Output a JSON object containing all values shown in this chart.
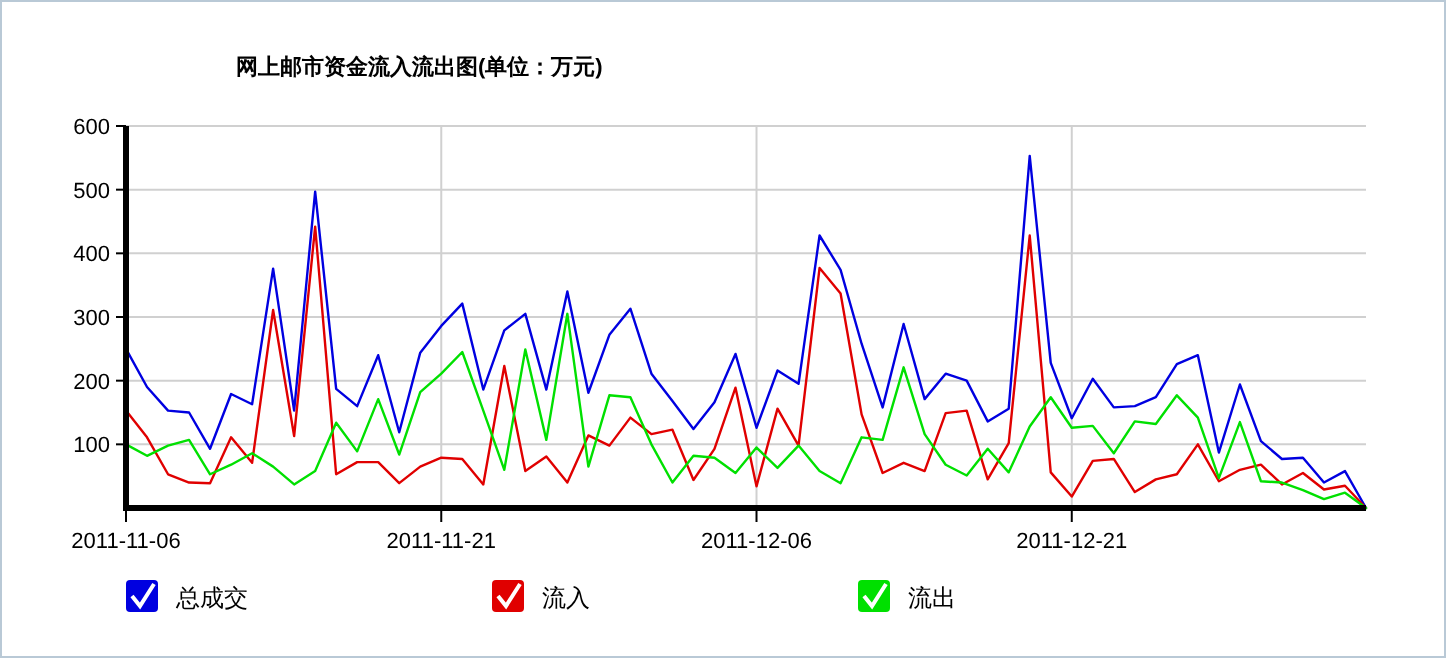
{
  "chart_data": {
    "type": "line",
    "title": "网上邮市资金流入流出图(单位：万元)",
    "x": [
      "2011-11-06",
      "2011-11-07",
      "2011-11-08",
      "2011-11-09",
      "2011-11-10",
      "2011-11-11",
      "2011-11-12",
      "2011-11-13",
      "2011-11-14",
      "2011-11-15",
      "2011-11-16",
      "2011-11-17",
      "2011-11-18",
      "2011-11-19",
      "2011-11-20",
      "2011-11-21",
      "2011-11-22",
      "2011-11-23",
      "2011-11-24",
      "2011-11-25",
      "2011-11-26",
      "2011-11-27",
      "2011-11-28",
      "2011-11-29",
      "2011-11-30",
      "2011-12-01",
      "2011-12-02",
      "2011-12-03",
      "2011-12-04",
      "2011-12-05",
      "2011-12-06",
      "2011-12-07",
      "2011-12-08",
      "2011-12-09",
      "2011-12-10",
      "2011-12-11",
      "2011-12-12",
      "2011-12-13",
      "2011-12-14",
      "2011-12-15",
      "2011-12-16",
      "2011-12-17",
      "2011-12-18",
      "2011-12-19",
      "2011-12-20",
      "2011-12-21",
      "2011-12-22",
      "2011-12-23",
      "2011-12-24",
      "2011-12-25",
      "2011-12-26",
      "2011-12-27",
      "2011-12-28",
      "2011-12-29",
      "2011-12-30",
      "2011-12-31",
      "2012-01-01",
      "2012-01-02",
      "2012-01-03",
      "2012-01-04"
    ],
    "series": [
      {
        "name": "总成交",
        "color": "#0000e0",
        "values": [
          250,
          190,
          153,
          150,
          93,
          179,
          163,
          376,
          153,
          497,
          187,
          160,
          240,
          119,
          244,
          286,
          321,
          186,
          279,
          305,
          186,
          340,
          181,
          272,
          313,
          211,
          168,
          124,
          166,
          242,
          126,
          216,
          195,
          428,
          374,
          258,
          158,
          289,
          171,
          211,
          200,
          136,
          156,
          553,
          228,
          141,
          203,
          158,
          160,
          174,
          226,
          240,
          87,
          194,
          105,
          77,
          79,
          40,
          58,
          0
        ]
      },
      {
        "name": "流入",
        "color": "#e00000",
        "values": [
          153,
          111,
          53,
          40,
          39,
          111,
          71,
          311,
          113,
          442,
          53,
          72,
          72,
          39,
          65,
          79,
          77,
          37,
          223,
          58,
          81,
          40,
          114,
          98,
          142,
          116,
          123,
          44,
          93,
          189,
          34,
          156,
          98,
          377,
          337,
          147,
          55,
          71,
          58,
          149,
          153,
          45,
          102,
          428,
          56,
          18,
          74,
          77,
          25,
          45,
          53,
          100,
          42,
          60,
          68,
          37,
          55,
          29,
          35,
          0
        ]
      },
      {
        "name": "流出",
        "color": "#00e000",
        "values": [
          100,
          82,
          98,
          107,
          53,
          68,
          86,
          65,
          37,
          58,
          134,
          89,
          171,
          84,
          182,
          211,
          245,
          153,
          60,
          249,
          107,
          305,
          65,
          177,
          174,
          100,
          40,
          82,
          79,
          55,
          95,
          63,
          98,
          58,
          39,
          111,
          107,
          221,
          116,
          68,
          51,
          93,
          56,
          128,
          174,
          126,
          129,
          86,
          136,
          132,
          177,
          142,
          47,
          135,
          42,
          40,
          28,
          14,
          24,
          0
        ]
      }
    ],
    "xlim": [
      "2011-11-06",
      "2012-01-04"
    ],
    "xticks": [
      "2011-11-06",
      "2011-11-21",
      "2011-12-06",
      "2011-12-21"
    ],
    "ylim": [
      0,
      600
    ],
    "yticks": [
      100,
      200,
      300,
      400,
      500,
      600
    ],
    "grid": true,
    "legend": "bottom left",
    "marker": "none",
    "line_style": "solid"
  }
}
